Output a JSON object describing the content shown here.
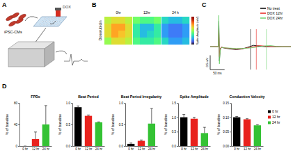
{
  "panel_labels": [
    "A",
    "B",
    "C",
    "D"
  ],
  "schematic": {
    "cells_label": "iPSC-CMs",
    "drug_label": "DOX"
  },
  "chart_data": [
    {
      "type": "heatmap",
      "title": "Doxorubicin",
      "panels": [
        "0hr",
        "12hr",
        "24 h"
      ],
      "cells": [
        [
          [
            0.55,
            0.6,
            0.6,
            0.55
          ],
          [
            0.6,
            0.7,
            0.7,
            0.6
          ],
          [
            0.6,
            0.7,
            0.65,
            0.6
          ],
          [
            0.5,
            0.6,
            0.6,
            0.55
          ]
        ],
        [
          [
            0.45,
            0.4,
            0.4,
            0.45
          ],
          [
            0.35,
            0.25,
            0.25,
            0.35
          ],
          [
            0.35,
            0.25,
            0.3,
            0.35
          ],
          [
            0.4,
            0.35,
            0.35,
            0.4
          ]
        ],
        [
          [
            0.3,
            0.25,
            0.25,
            0.3
          ],
          [
            0.2,
            0.15,
            0.15,
            0.2
          ],
          [
            0.2,
            0.15,
            0.15,
            0.2
          ],
          [
            0.3,
            0.2,
            0.2,
            0.25
          ]
        ]
      ],
      "colorbar_label": "Spike Amplitude (mV)",
      "colorbar_range": [
        0,
        1
      ]
    },
    {
      "type": "line",
      "tick_labels": false,
      "legend": "upper-right",
      "xlim": [
        -30,
        250
      ],
      "ylim": [
        -0.8,
        1.2
      ],
      "x": [
        -30,
        -10,
        -2,
        0,
        2,
        4,
        6,
        10,
        20,
        40,
        60,
        80,
        100,
        120,
        140,
        160,
        180,
        200,
        220,
        250
      ],
      "series": [
        {
          "name": "No treat",
          "color": "#000000",
          "fpd": 110,
          "values": [
            0,
            0,
            0,
            0.9,
            -0.5,
            -0.2,
            -0.05,
            -0.02,
            -0.05,
            -0.08,
            -0.1,
            -0.08,
            -0.02,
            0.05,
            0.02,
            0,
            0,
            0,
            0,
            0
          ]
        },
        {
          "name": "DOX 12hr",
          "color": "#e8221d",
          "fpd": 130,
          "values": [
            0,
            0,
            0,
            0.6,
            -0.35,
            -0.15,
            -0.04,
            -0.02,
            -0.04,
            -0.06,
            -0.08,
            -0.07,
            -0.04,
            0.0,
            0.04,
            0.02,
            0,
            0,
            0,
            0
          ]
        },
        {
          "name": "DOX 24hr",
          "color": "#6fd36f",
          "fpd": 165,
          "values": [
            0,
            0,
            0,
            1.1,
            -0.6,
            -0.25,
            -0.06,
            -0.03,
            -0.04,
            -0.05,
            -0.06,
            -0.06,
            -0.05,
            -0.03,
            0.0,
            0.03,
            0.04,
            0.01,
            0,
            0
          ]
        }
      ],
      "scale_bar": {
        "x": 50,
        "x_label": "50 ms",
        "y": 0.5,
        "y_label": "0.5 mV"
      }
    },
    {
      "type": "bar",
      "title": "FPDc",
      "y_label": "% of baseline",
      "categories": [
        "0 hr",
        "12 hr",
        "24 hr"
      ],
      "values": [
        0,
        13,
        40
      ],
      "errors": [
        0,
        13,
        35
      ],
      "colors": [
        "#000000",
        "#e8221d",
        "#34c234"
      ],
      "ylim": [
        0,
        80
      ],
      "yticks": [
        0,
        40,
        80
      ]
    },
    {
      "type": "bar",
      "title": "Beat Period",
      "y_label": "% of baseline",
      "categories": [
        "0 hr",
        "12 hr",
        "24 hr"
      ],
      "values": [
        0.9,
        0.7,
        0.55
      ],
      "errors": [
        0.03,
        0.02,
        0.01
      ],
      "colors": [
        "#000000",
        "#e8221d",
        "#34c234"
      ],
      "ylim": [
        0,
        1
      ],
      "yticks": [
        {
          "value": 0,
          "label": "0.0"
        },
        0.5,
        {
          "value": 1,
          "label": "1.0"
        }
      ]
    },
    {
      "type": "bar",
      "title": "Beat Period Irregularity",
      "y_label": "% of baseline",
      "categories": [
        "0 hr",
        "12 hr",
        "24 hr"
      ],
      "values": [
        0.05,
        0.12,
        0.52
      ],
      "errors": [
        0.02,
        0.02,
        0.35
      ],
      "colors": [
        "#000000",
        "#e8221d",
        "#34c234"
      ],
      "ylim": [
        0,
        1
      ],
      "yticks": [
        {
          "value": 0,
          "label": "0.0"
        },
        0.5,
        {
          "value": 1,
          "label": "1.0"
        }
      ]
    },
    {
      "type": "bar",
      "title": "Spike Amplitude",
      "y_label": "% of baseline",
      "categories": [
        "0 hr",
        "12 hr",
        "24 hr"
      ],
      "values": [
        1.0,
        0.95,
        0.45
      ],
      "errors": [
        0.1,
        0.05,
        0.2
      ],
      "colors": [
        "#000000",
        "#e8221d",
        "#34c234"
      ],
      "ylim": [
        0,
        1.5
      ],
      "yticks": [
        {
          "value": 0,
          "label": "0.0"
        },
        0.5,
        {
          "value": 1,
          "label": "1.0"
        },
        1.5
      ]
    },
    {
      "type": "bar",
      "title": "Conduction Velocity",
      "y_label": "% of baseline",
      "categories": [
        "0 hr",
        "12 hr",
        "24 hr"
      ],
      "values": [
        0.1,
        0.093,
        0.072
      ],
      "errors": [
        0.003,
        0.002,
        0.002
      ],
      "colors": [
        "#000000",
        "#e8221d",
        "#34c234"
      ],
      "ylim": [
        0,
        0.15
      ],
      "yticks": [
        {
          "value": 0,
          "label": "0.00"
        },
        0.05,
        {
          "value": 0.1,
          "label": "0.10"
        },
        0.15
      ],
      "legend": "right"
    }
  ]
}
